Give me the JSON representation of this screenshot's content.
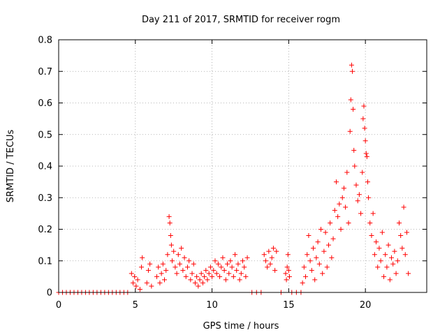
{
  "chart_data": {
    "type": "scatter",
    "title": "Day 211 of 2017, SRMTID for receiver rogm",
    "xlabel": "GPS time / hours",
    "ylabel": "SRMTID / TECUs",
    "xlim": [
      0,
      24
    ],
    "ylim": [
      0,
      0.8
    ],
    "xticks": [
      "0",
      "5",
      "10",
      "15",
      "20"
    ],
    "yticks": [
      "0",
      "0.1",
      "0.2",
      "0.3",
      "0.4",
      "0.5",
      "0.6",
      "0.7",
      "0.8"
    ],
    "grid": true,
    "legend": "none",
    "marker": "plus",
    "color": "#ff0000",
    "series": [
      {
        "x": [
          0.0,
          0.25,
          0.5,
          0.75,
          1.0,
          1.25,
          1.5,
          1.75,
          2.0,
          2.25,
          2.5,
          2.75,
          3.0,
          3.25,
          3.5,
          3.75,
          4.0,
          4.25,
          4.5,
          4.75,
          4.85,
          4.95,
          5.05,
          5.15,
          5.3,
          5.4,
          5.45,
          5.75,
          5.85,
          5.95,
          6.05,
          6.4,
          6.5,
          6.6,
          6.7,
          6.8,
          6.9,
          7.0,
          7.1,
          7.2,
          7.25,
          7.3,
          7.35,
          7.4,
          7.5,
          7.6,
          7.7,
          7.8,
          7.9,
          8.0,
          8.1,
          8.2,
          8.3,
          8.4,
          8.5,
          8.6,
          8.7,
          8.8,
          8.9,
          9.0,
          9.1,
          9.2,
          9.3,
          9.4,
          9.5,
          9.6,
          9.7,
          9.8,
          9.9,
          10.0,
          10.1,
          10.2,
          10.3,
          10.4,
          10.5,
          10.6,
          10.7,
          10.8,
          10.9,
          11.0,
          11.1,
          11.2,
          11.3,
          11.4,
          11.5,
          11.6,
          11.7,
          11.8,
          11.9,
          12.0,
          12.1,
          12.2,
          12.3,
          12.6,
          12.9,
          13.2,
          13.4,
          13.5,
          13.6,
          13.7,
          13.8,
          13.9,
          14.0,
          14.1,
          14.2,
          14.5,
          14.8,
          14.85,
          14.9,
          14.95,
          15.0,
          15.05,
          15.2,
          15.5,
          15.8,
          15.9,
          16.0,
          16.1,
          16.2,
          16.3,
          16.4,
          16.5,
          16.6,
          16.7,
          16.8,
          16.9,
          17.0,
          17.1,
          17.2,
          17.3,
          17.4,
          17.5,
          17.6,
          17.7,
          17.8,
          17.9,
          18.0,
          18.1,
          18.2,
          18.3,
          18.4,
          18.5,
          18.6,
          18.7,
          18.8,
          18.9,
          19.0,
          19.05,
          19.1,
          19.15,
          19.2,
          19.25,
          19.3,
          19.4,
          19.5,
          19.6,
          19.7,
          19.8,
          19.85,
          19.9,
          19.95,
          20.0,
          20.05,
          20.1,
          20.15,
          20.2,
          20.3,
          20.4,
          20.5,
          20.6,
          20.7,
          20.8,
          20.9,
          21.0,
          21.1,
          21.2,
          21.3,
          21.4,
          21.5,
          21.6,
          21.7,
          21.8,
          21.9,
          22.0,
          22.1,
          22.2,
          22.3,
          22.4,
          22.5,
          22.6,
          22.7,
          22.8
        ],
        "y": [
          0,
          0,
          0,
          0,
          0,
          0,
          0,
          0,
          0,
          0,
          0,
          0,
          0,
          0,
          0,
          0,
          0,
          0,
          0,
          0.06,
          0.03,
          0.05,
          0.02,
          0.04,
          0.01,
          0.08,
          0.11,
          0.03,
          0.07,
          0.09,
          0.02,
          0.05,
          0.08,
          0.03,
          0.06,
          0.09,
          0.04,
          0.07,
          0.12,
          0.24,
          0.22,
          0.18,
          0.15,
          0.1,
          0.13,
          0.08,
          0.06,
          0.12,
          0.09,
          0.14,
          0.07,
          0.11,
          0.05,
          0.08,
          0.1,
          0.04,
          0.06,
          0.09,
          0.03,
          0.05,
          0.02,
          0.04,
          0.06,
          0.03,
          0.05,
          0.07,
          0.04,
          0.06,
          0.08,
          0.05,
          0.07,
          0.1,
          0.06,
          0.09,
          0.05,
          0.08,
          0.11,
          0.07,
          0.04,
          0.09,
          0.06,
          0.1,
          0.08,
          0.05,
          0.12,
          0.07,
          0.09,
          0.04,
          0.06,
          0.1,
          0.08,
          0.05,
          0.11,
          0,
          0,
          0,
          0.12,
          0.1,
          0.08,
          0.13,
          0.09,
          0.11,
          0.14,
          0.07,
          0.13,
          0,
          0.06,
          0.04,
          0.08,
          0.12,
          0.07,
          0.05,
          0,
          0,
          0,
          0.03,
          0.08,
          0.05,
          0.12,
          0.18,
          0.1,
          0.07,
          0.14,
          0.04,
          0.11,
          0.16,
          0.09,
          0.2,
          0.06,
          0.13,
          0.19,
          0.08,
          0.15,
          0.22,
          0.11,
          0.17,
          0.26,
          0.35,
          0.24,
          0.28,
          0.2,
          0.3,
          0.33,
          0.27,
          0.38,
          0.22,
          0.51,
          0.61,
          0.72,
          0.7,
          0.58,
          0.45,
          0.4,
          0.34,
          0.29,
          0.31,
          0.25,
          0.38,
          0.55,
          0.59,
          0.52,
          0.48,
          0.44,
          0.43,
          0.35,
          0.3,
          0.22,
          0.18,
          0.25,
          0.12,
          0.16,
          0.08,
          0.14,
          0.1,
          0.19,
          0.05,
          0.12,
          0.08,
          0.15,
          0.04,
          0.11,
          0.09,
          0.13,
          0.06,
          0.1,
          0.22,
          0.18,
          0.14,
          0.27,
          0.12,
          0.19,
          0.06
        ]
      }
    ]
  }
}
